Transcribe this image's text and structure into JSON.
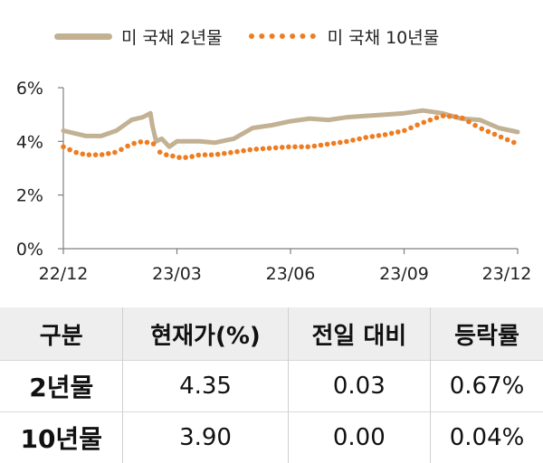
{
  "legend": {
    "s2": "미 국채 2년물",
    "s10": "미 국채 10년물"
  },
  "colors": {
    "s2": "#c2b193",
    "s10": "#ee7d22",
    "axis": "#7f7f7f"
  },
  "chart_data": {
    "type": "line",
    "title": "",
    "xlabel": "",
    "ylabel": "",
    "ylim": [
      0,
      6
    ],
    "yticks": [
      "0%",
      "2%",
      "4%",
      "6%"
    ],
    "x_range": [
      0,
      12
    ],
    "xticks": [
      {
        "x": 0,
        "label": "22/12"
      },
      {
        "x": 3,
        "label": "23/03"
      },
      {
        "x": 6,
        "label": "23/06"
      },
      {
        "x": 9,
        "label": "23/09"
      },
      {
        "x": 12,
        "label": "23/12"
      }
    ],
    "series": [
      {
        "name": "미 국채 2년물",
        "style": "solid",
        "x": [
          0,
          0.3,
          0.6,
          1.0,
          1.4,
          1.8,
          2.1,
          2.3,
          2.35,
          2.45,
          2.6,
          2.8,
          3.0,
          3.3,
          3.6,
          4.0,
          4.5,
          5.0,
          5.5,
          6.0,
          6.5,
          7.0,
          7.5,
          8.0,
          8.5,
          9.0,
          9.5,
          10.0,
          10.5,
          11.0,
          11.5,
          12.0
        ],
        "values": [
          4.4,
          4.3,
          4.2,
          4.2,
          4.4,
          4.8,
          4.9,
          5.05,
          4.6,
          4.0,
          4.1,
          3.8,
          4.0,
          4.0,
          4.0,
          3.95,
          4.1,
          4.5,
          4.6,
          4.75,
          4.85,
          4.8,
          4.9,
          4.95,
          5.0,
          5.05,
          5.15,
          5.05,
          4.85,
          4.8,
          4.5,
          4.35
        ]
      },
      {
        "name": "미 국채 10년물",
        "style": "dotted",
        "x": [
          0,
          0.3,
          0.6,
          1.0,
          1.4,
          1.8,
          2.1,
          2.4,
          2.6,
          2.8,
          3.0,
          3.3,
          3.6,
          4.0,
          4.5,
          5.0,
          5.5,
          6.0,
          6.5,
          7.0,
          7.5,
          8.0,
          8.5,
          9.0,
          9.5,
          10.0,
          10.5,
          11.0,
          11.5,
          12.0
        ],
        "values": [
          3.8,
          3.6,
          3.5,
          3.5,
          3.6,
          3.9,
          4.0,
          3.9,
          3.5,
          3.5,
          3.4,
          3.4,
          3.5,
          3.5,
          3.6,
          3.7,
          3.75,
          3.8,
          3.8,
          3.9,
          4.0,
          4.15,
          4.25,
          4.4,
          4.7,
          4.95,
          4.9,
          4.5,
          4.2,
          3.9
        ]
      }
    ]
  },
  "table": {
    "headers": [
      "구분",
      "현재가(%)",
      "전일 대비",
      "등락률"
    ],
    "rows": [
      {
        "label": "2년물",
        "price": "4.35",
        "change": "0.03",
        "rate": "0.67%"
      },
      {
        "label": "10년물",
        "price": "3.90",
        "change": "0.00",
        "rate": "0.04%"
      }
    ]
  }
}
